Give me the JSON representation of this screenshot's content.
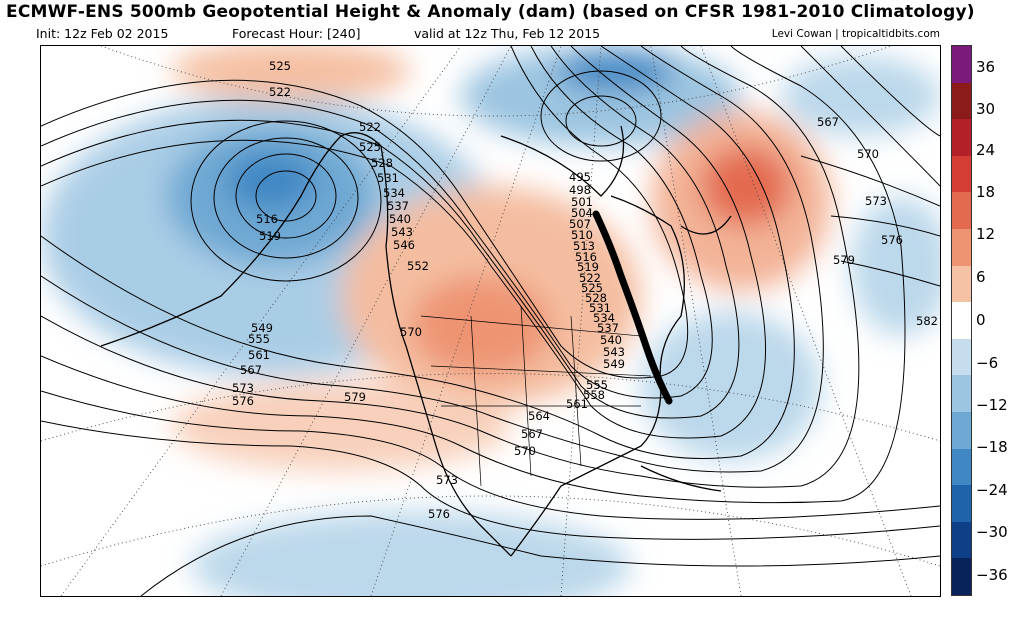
{
  "header": {
    "title": "ECMWF-ENS 500mb Geopotential Height & Anomaly (dam) (based on CFSR 1981-2010 Climatology)",
    "init": "Init: 12z Feb 02 2015",
    "forecast_hour": "Forecast Hour: [240]",
    "valid": "valid at 12z Thu, Feb 12 2015",
    "credit": "Levi Cowan | tropicaltidbits.com"
  },
  "colorbar": {
    "ticks": [
      "36",
      "30",
      "24",
      "18",
      "12",
      "6",
      "0",
      "−6",
      "−12",
      "−18",
      "−24",
      "−30",
      "−36"
    ],
    "colors": [
      "#7b1a7b",
      "#8b1a1a",
      "#b3202a",
      "#d43d33",
      "#e36a4f",
      "#ee9473",
      "#f6c2a6",
      "#ffffff",
      "#c6dded",
      "#9cc5e1",
      "#6ea8d3",
      "#3f88c4",
      "#1f63ab",
      "#0f3f86",
      "#07235a"
    ]
  },
  "contour_labels": {
    "top": [
      "525",
      "522",
      "522",
      "525",
      "528",
      "531",
      "534",
      "537",
      "540",
      "543",
      "546",
      "552"
    ],
    "pacific": [
      "516",
      "519"
    ],
    "west": [
      "549",
      "555",
      "561",
      "567",
      "573",
      "576",
      "570",
      "579",
      "573",
      "576"
    ],
    "east": [
      "495",
      "498",
      "501",
      "504",
      "507",
      "510",
      "513",
      "516",
      "519",
      "522",
      "525",
      "528",
      "531",
      "534",
      "537",
      "540",
      "543",
      "549",
      "555",
      "558",
      "561",
      "564",
      "567",
      "570"
    ],
    "atlantic": [
      "567",
      "570",
      "573",
      "576",
      "579",
      "582"
    ]
  }
}
